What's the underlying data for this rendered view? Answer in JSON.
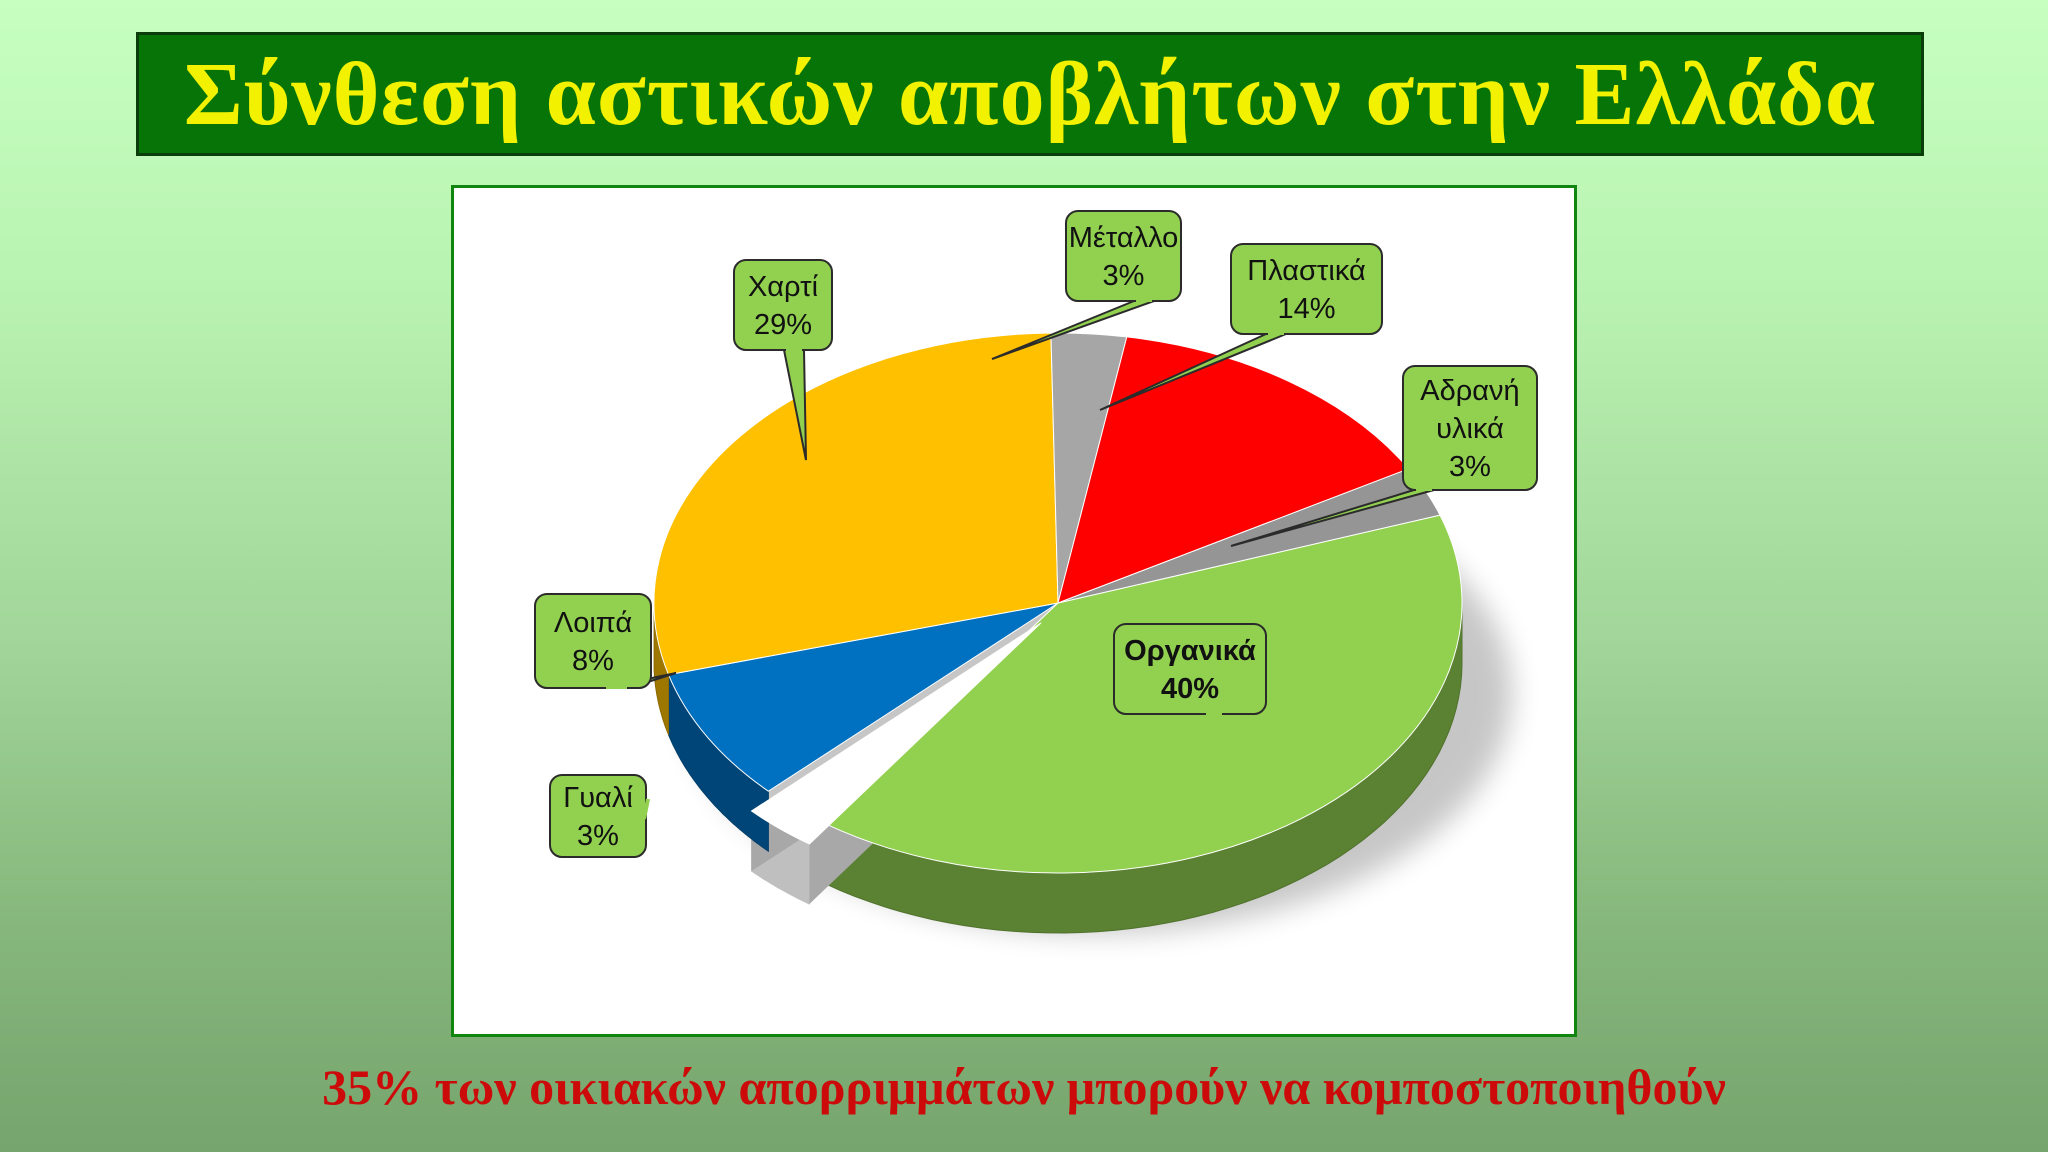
{
  "title": "Σύνθεση αστικών αποβλήτων στην Ελλάδα",
  "footer": "35% των οικιακών απορριμμάτων μπορούν να κομποστοποιηθούν",
  "chart_data": {
    "type": "pie",
    "title": "",
    "slices": [
      {
        "name": "Οργανικά",
        "value": 40,
        "label": "40%",
        "color": "#92d050",
        "bold": true
      },
      {
        "name": "Γυαλί",
        "value": 3,
        "label": "3%",
        "color": "#ffffff",
        "bold": false
      },
      {
        "name": "Λοιπά",
        "value": 8,
        "label": "8%",
        "color": "#0070c0",
        "bold": false
      },
      {
        "name": "Χαρτί",
        "value": 29,
        "label": "29%",
        "color": "#ffc000",
        "bold": false
      },
      {
        "name": "Μέταλλο",
        "value": 3,
        "label": "3%",
        "color": "#a6a6a6",
        "bold": false
      },
      {
        "name": "Πλαστικά",
        "value": 14,
        "label": "14%",
        "color": "#ff0000",
        "bold": false
      },
      {
        "name": "Αδρανή υλικά",
        "value": 3,
        "label": "3%",
        "color": "#959595",
        "bold": false
      }
    ],
    "label_fill": "#92d050",
    "legend": "none"
  }
}
